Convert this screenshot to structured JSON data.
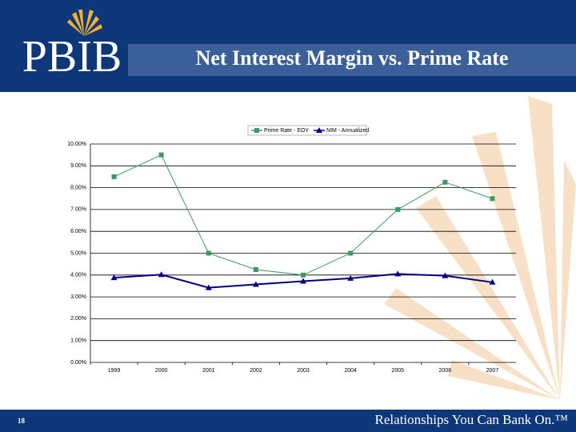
{
  "slide": {
    "logo": "PBIB",
    "page_number": "18",
    "tagline": "Relationships You Can Bank On.™"
  },
  "chart_data": {
    "type": "line",
    "title": "Net Interest Margin vs. Prime Rate",
    "categories": [
      "1999",
      "2000",
      "2001",
      "2002",
      "2003",
      "2004",
      "2005",
      "2006",
      "2007"
    ],
    "series": [
      {
        "name": "Prime Rate - EOY",
        "color": "#3c9a5c",
        "marker": "square",
        "values": [
          8.5,
          9.5,
          5.0,
          4.25,
          4.0,
          5.0,
          7.0,
          8.25,
          7.5
        ]
      },
      {
        "name": "NIM - Annualized",
        "color": "#000080",
        "marker": "triangle",
        "values": [
          3.88,
          4.02,
          3.42,
          3.57,
          3.72,
          3.85,
          4.05,
          3.97,
          3.67
        ]
      }
    ],
    "ylim": [
      0,
      10
    ],
    "yticks": [
      {
        "value": 0,
        "label": "0.00%"
      },
      {
        "value": 1,
        "label": "1.00%"
      },
      {
        "value": 2,
        "label": "2.00%"
      },
      {
        "value": 3,
        "label": "3.00%"
      },
      {
        "value": 4,
        "label": "4.00%"
      },
      {
        "value": 5,
        "label": "5.00%"
      },
      {
        "value": 6,
        "label": "6.00%"
      },
      {
        "value": 7,
        "label": "7.00%"
      },
      {
        "value": 8,
        "label": "8.00%"
      },
      {
        "value": 9,
        "label": "9.00%"
      },
      {
        "value": 10,
        "label": "10.00%"
      }
    ],
    "grid": true,
    "legend": "top"
  }
}
